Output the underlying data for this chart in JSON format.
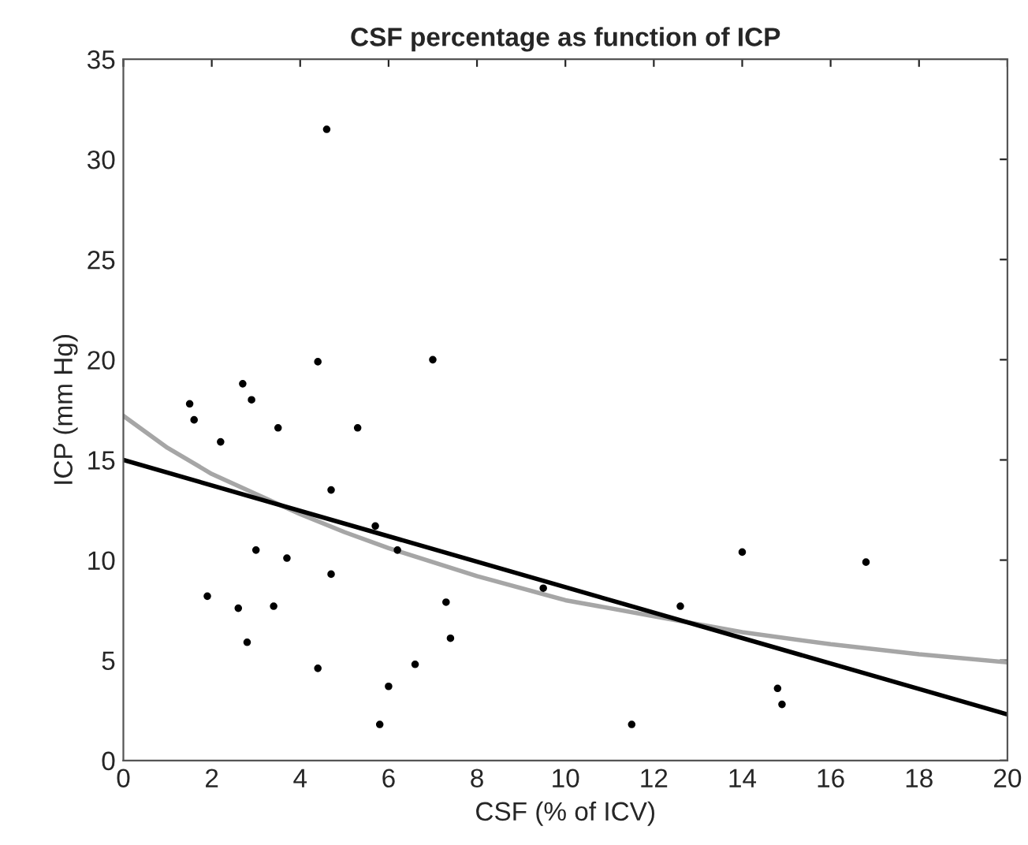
{
  "chart_data": {
    "type": "scatter",
    "title": "CSF percentage as function of ICP",
    "xlabel": "CSF (% of ICV)",
    "ylabel": "ICP (mm Hg)",
    "xlim": [
      0,
      20
    ],
    "xticks": [
      0,
      2,
      4,
      6,
      8,
      10,
      12,
      14,
      16,
      18,
      20
    ],
    "ylim": [
      0,
      35
    ],
    "yticks": [
      0,
      5,
      10,
      15,
      20,
      25,
      30,
      35
    ],
    "grid": false,
    "legend": false,
    "series": [
      {
        "color": "#000000",
        "marker": "circle",
        "x": [
          1.5,
          1.6,
          1.9,
          2.2,
          2.6,
          2.7,
          2.8,
          2.9,
          3.0,
          3.4,
          3.5,
          3.7,
          4.4,
          4.4,
          4.6,
          4.7,
          4.7,
          5.3,
          5.7,
          5.8,
          6.0,
          6.2,
          6.6,
          7.0,
          7.3,
          7.4,
          9.5,
          11.5,
          12.6,
          14.0,
          14.8,
          14.9,
          16.8
        ],
        "values": [
          17.8,
          17.0,
          8.2,
          15.9,
          7.6,
          18.8,
          5.9,
          18.0,
          10.5,
          7.7,
          16.6,
          10.1,
          4.6,
          19.9,
          31.5,
          13.5,
          9.3,
          16.6,
          11.7,
          1.8,
          3.7,
          10.5,
          4.8,
          20.0,
          7.9,
          6.1,
          8.6,
          1.8,
          7.7,
          10.4,
          3.6,
          2.8,
          9.9
        ]
      },
      {
        "type": "line",
        "color": "#a6a6a6",
        "marker": "none",
        "line_style": "solid",
        "x": [
          0,
          1,
          2,
          3,
          4,
          5,
          6,
          8,
          10,
          12,
          14,
          16,
          18,
          20
        ],
        "values": [
          17.2,
          15.6,
          14.3,
          13.3,
          12.3,
          11.4,
          10.6,
          9.2,
          8.0,
          7.2,
          6.4,
          5.8,
          5.3,
          4.9
        ]
      },
      {
        "type": "line",
        "color": "#000000",
        "marker": "none",
        "line_style": "solid",
        "x": [
          0,
          20
        ],
        "values": [
          15.0,
          2.3
        ]
      }
    ]
  }
}
